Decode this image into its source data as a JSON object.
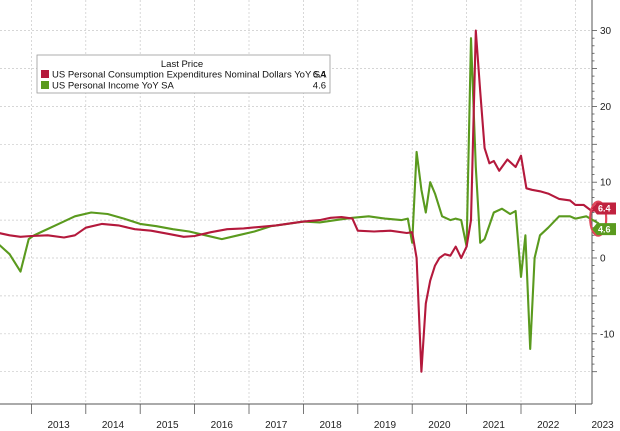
{
  "chart_data": {
    "type": "line",
    "title": "",
    "xlabel": "",
    "ylabel": "",
    "ylim": [
      -18,
      33
    ],
    "xlim": [
      2012.0,
      2023.95
    ],
    "y_ticks": [
      30,
      20,
      10,
      0,
      -10
    ],
    "x_ticks": [
      "2013",
      "2014",
      "2015",
      "2016",
      "2017",
      "2018",
      "2019",
      "2020",
      "2021",
      "2022",
      "2023"
    ],
    "grid": true,
    "legend": {
      "header": "Last Price",
      "placement": "top-left",
      "entries": [
        {
          "label": "US Personal Consumption Expenditures Nominal Dollars YoY SA",
          "last": "6.4",
          "color": "#b4193c"
        },
        {
          "label": "US Personal Income YoY SA",
          "last": "4.6",
          "color": "#5a9a1e"
        }
      ]
    },
    "last_value_badges": [
      {
        "text": "6.4",
        "color": "#c0223f"
      },
      {
        "text": "4.6",
        "color": "#5a9a1e"
      }
    ],
    "highlight": {
      "x": 2023.42,
      "y": 5.2,
      "color": "#e0465a"
    },
    "series": [
      {
        "name": "US Personal Consumption Expenditures Nominal Dollars YoY SA",
        "color": "#b4193c",
        "x": [
          2012.0,
          2012.4,
          2012.6,
          2012.8,
          2013.0,
          2013.3,
          2013.6,
          2013.8,
          2014.0,
          2014.3,
          2014.6,
          2014.9,
          2015.2,
          2015.5,
          2015.8,
          2016.0,
          2016.3,
          2016.6,
          2016.9,
          2017.2,
          2017.5,
          2017.8,
          2018.0,
          2018.3,
          2018.5,
          2018.7,
          2018.9,
          2019.0,
          2019.3,
          2019.6,
          2019.9,
          2020.0,
          2020.08,
          2020.17,
          2020.25,
          2020.33,
          2020.42,
          2020.5,
          2020.6,
          2020.7,
          2020.8,
          2020.9,
          2021.0,
          2021.08,
          2021.17,
          2021.25,
          2021.33,
          2021.42,
          2021.5,
          2021.6,
          2021.75,
          2021.9,
          2022.0,
          2022.1,
          2022.2,
          2022.35,
          2022.5,
          2022.7,
          2022.9,
          2023.0,
          2023.15,
          2023.3,
          2023.42
        ],
        "values": [
          3.5,
          3.3,
          3.0,
          2.8,
          2.9,
          3.0,
          2.7,
          3.0,
          4.0,
          4.5,
          4.3,
          3.8,
          3.6,
          3.2,
          2.8,
          2.9,
          3.4,
          3.8,
          3.9,
          4.1,
          4.3,
          4.6,
          4.8,
          5.0,
          5.3,
          5.4,
          5.2,
          3.6,
          3.5,
          3.6,
          3.3,
          3.4,
          0.0,
          -15.0,
          -6.0,
          -3.0,
          -1.0,
          0.0,
          0.5,
          0.3,
          1.5,
          0.0,
          1.5,
          5.0,
          30.0,
          22.0,
          14.5,
          12.5,
          12.8,
          11.5,
          13.0,
          12.0,
          13.5,
          9.2,
          9.0,
          8.8,
          8.5,
          7.8,
          7.6,
          7.0,
          7.0,
          6.2,
          6.4
        ]
      },
      {
        "name": "US Personal Income YoY SA",
        "color": "#5a9a1e",
        "x": [
          2012.0,
          2012.1,
          2012.2,
          2012.3,
          2012.4,
          2012.6,
          2012.8,
          2012.95,
          2013.05,
          2013.2,
          2013.5,
          2013.8,
          2014.1,
          2014.4,
          2014.7,
          2015.0,
          2015.3,
          2015.6,
          2015.9,
          2016.2,
          2016.5,
          2016.8,
          2017.1,
          2017.4,
          2017.7,
          2018.0,
          2018.3,
          2018.6,
          2018.9,
          2019.2,
          2019.5,
          2019.8,
          2019.92,
          2020.0,
          2020.08,
          2020.17,
          2020.25,
          2020.33,
          2020.42,
          2020.55,
          2020.7,
          2020.8,
          2020.9,
          2021.0,
          2021.08,
          2021.17,
          2021.25,
          2021.33,
          2021.5,
          2021.65,
          2021.8,
          2021.9,
          2022.0,
          2022.08,
          2022.17,
          2022.25,
          2022.35,
          2022.5,
          2022.7,
          2022.9,
          2023.0,
          2023.2,
          2023.42
        ],
        "values": [
          5.0,
          6.5,
          8.5,
          2.5,
          1.8,
          0.5,
          -1.8,
          2.5,
          3.0,
          3.5,
          4.5,
          5.5,
          6.0,
          5.8,
          5.2,
          4.5,
          4.2,
          3.8,
          3.5,
          3.0,
          2.5,
          3.0,
          3.5,
          4.2,
          4.5,
          4.8,
          4.7,
          5.0,
          5.3,
          5.5,
          5.2,
          5.0,
          5.2,
          2.0,
          14.0,
          9.0,
          6.0,
          10.0,
          8.5,
          5.5,
          5.0,
          5.2,
          5.0,
          1.5,
          29.0,
          12.0,
          2.0,
          2.5,
          6.0,
          6.5,
          5.8,
          6.2,
          -2.5,
          3.0,
          -12.0,
          0.0,
          3.0,
          4.0,
          5.5,
          5.5,
          5.2,
          5.5,
          4.6
        ]
      }
    ]
  }
}
